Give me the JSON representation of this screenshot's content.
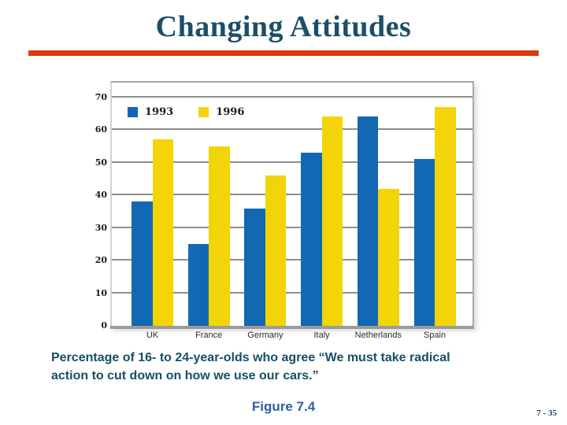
{
  "slide": {
    "title": "Changing Attitudes",
    "title_color": "#1c4f66",
    "accent_rule_color": "#dc3a10",
    "caption": {
      "line1": "Percentage of 16- to 24-year-olds who agree “We must take radical",
      "line2": "action to cut down on how we use our cars.”",
      "color": "#155067"
    },
    "figure_label": "Figure 7.4",
    "figure_label_color": "#2e5f9e",
    "page_number": "7 - 35",
    "page_number_color": "#17455a"
  },
  "chart_data": {
    "type": "bar",
    "title": "",
    "xlabel": "",
    "ylabel": "",
    "categories": [
      "UK",
      "France",
      "Germany",
      "Italy",
      "Netherlands",
      "Spain"
    ],
    "series": [
      {
        "name": "1993",
        "color": "#1268b3",
        "values": [
          38,
          25,
          36,
          53,
          64,
          51
        ]
      },
      {
        "name": "1996",
        "color": "#f2d408",
        "values": [
          57,
          55,
          46,
          64,
          42,
          67
        ]
      }
    ],
    "ylim": [
      0,
      70
    ],
    "ytick_step": 10,
    "grid": true,
    "gridline_color": "#8f8f8f",
    "legend_position": "top-left"
  }
}
